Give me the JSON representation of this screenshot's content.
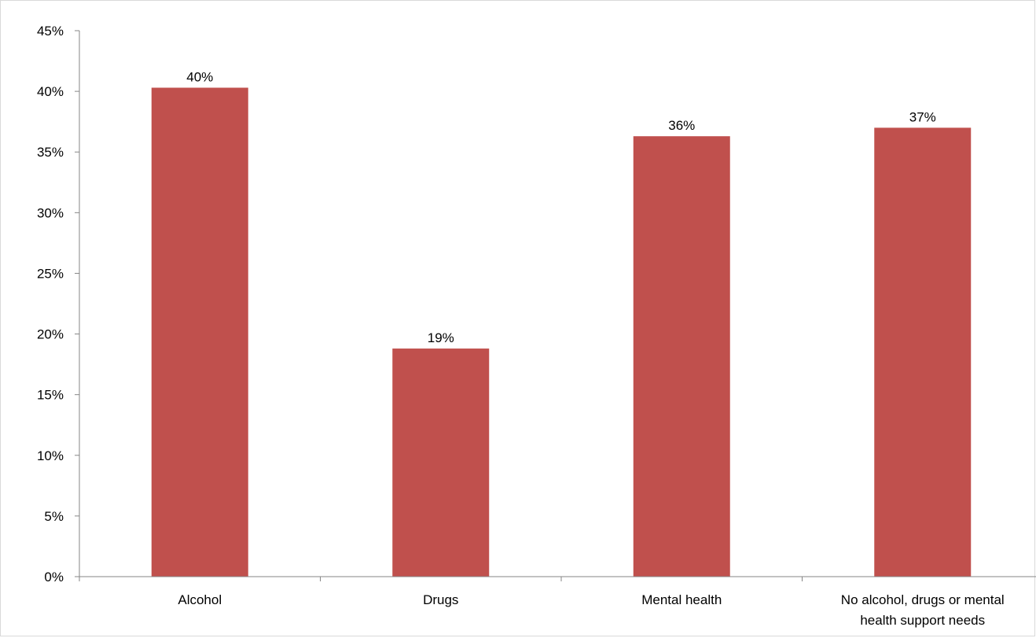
{
  "chart_data": {
    "type": "bar",
    "title": "",
    "xlabel": "",
    "ylabel": "",
    "categories": [
      "Alcohol",
      "Drugs",
      "Mental health",
      "No alcohol, drugs or mental health support needs"
    ],
    "category_label_lines": [
      [
        "Alcohol"
      ],
      [
        "Drugs"
      ],
      [
        "Mental health"
      ],
      [
        "No alcohol, drugs or mental",
        "health support needs"
      ]
    ],
    "values": [
      40.3,
      18.8,
      36.3,
      37.0
    ],
    "data_labels": [
      "40%",
      "19%",
      "36%",
      "37%"
    ],
    "ylim": [
      0,
      45
    ],
    "yticks": [
      0,
      5,
      10,
      15,
      20,
      25,
      30,
      35,
      40,
      45
    ],
    "ytick_labels": [
      "0%",
      "5%",
      "10%",
      "15%",
      "20%",
      "25%",
      "30%",
      "35%",
      "40%",
      "45%"
    ],
    "bar_color": "#C0504D",
    "axis_color": "#868686",
    "grid": false,
    "legend": "none"
  }
}
